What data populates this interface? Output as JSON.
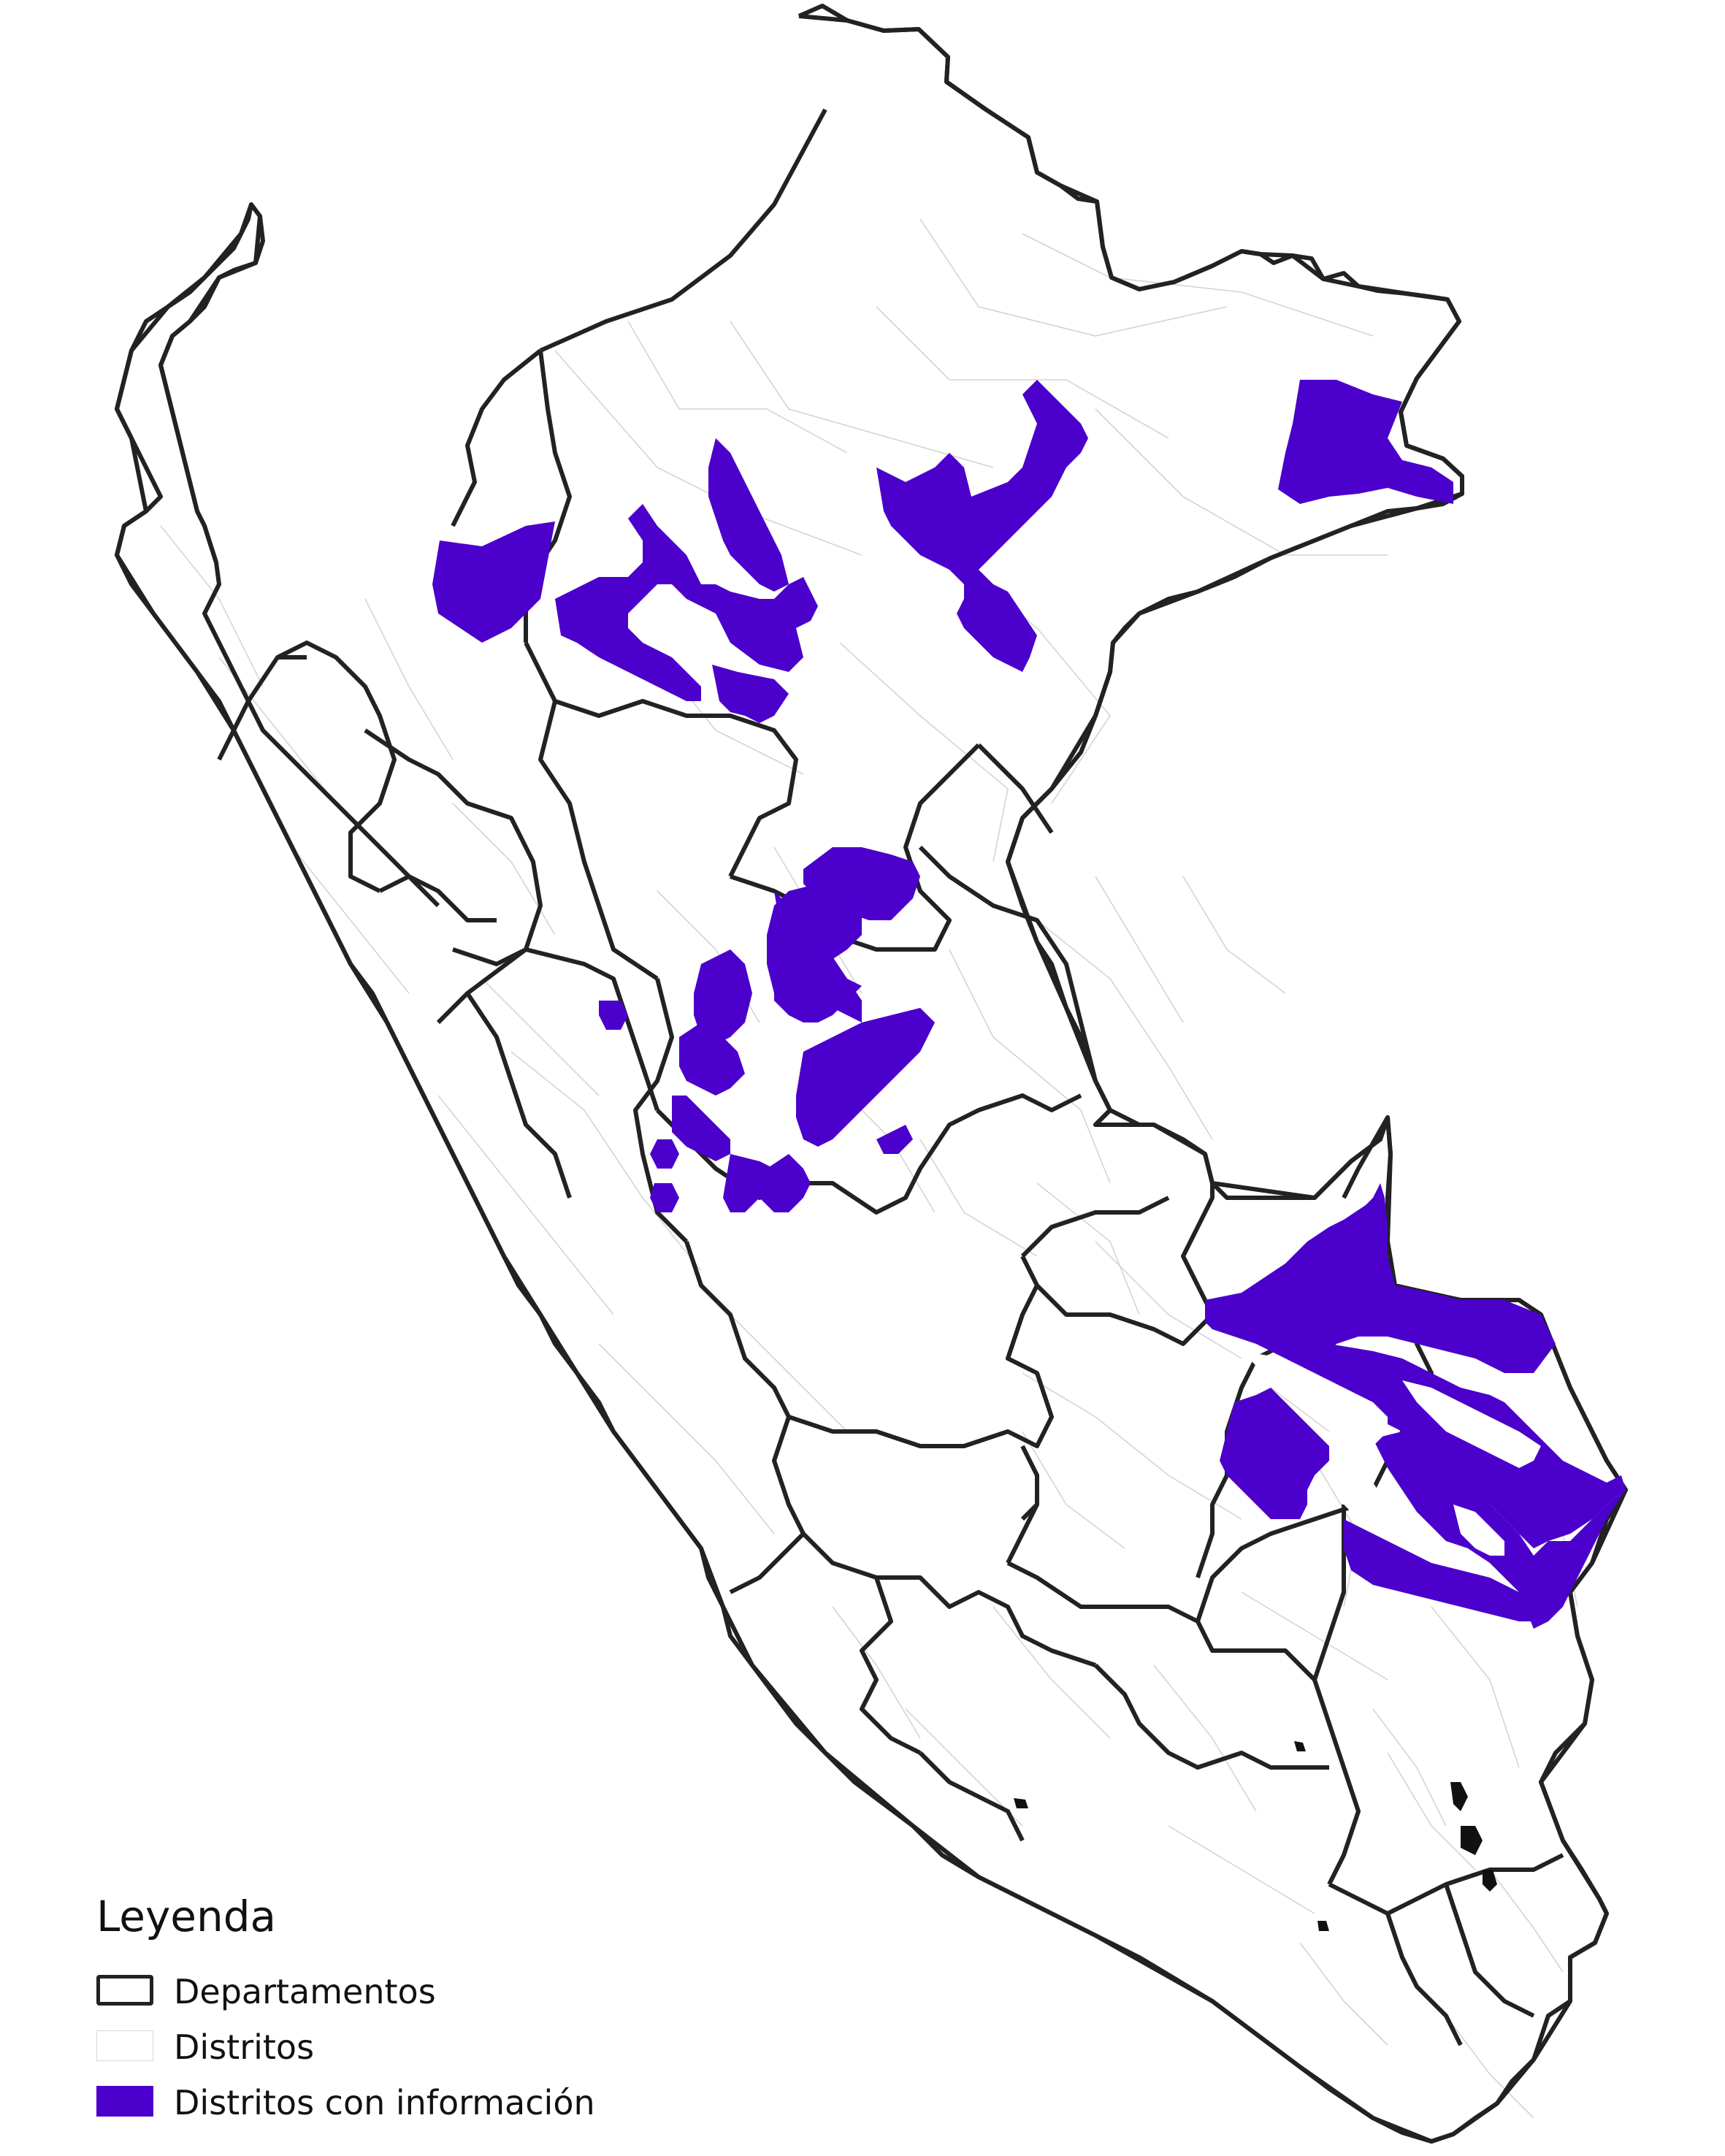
{
  "colors": {
    "departments_stroke": "#222222",
    "districts_stroke": "#d4d4d4",
    "districts_with_info_fill": "#4b00cc",
    "background": "#ffffff"
  },
  "legend": {
    "title": "Leyenda",
    "items": [
      {
        "label": "Departamentos",
        "symbol": "department-border"
      },
      {
        "label": "Distritos",
        "symbol": "district-border"
      },
      {
        "label": "Distritos con información",
        "symbol": "district-with-info-fill"
      }
    ]
  }
}
